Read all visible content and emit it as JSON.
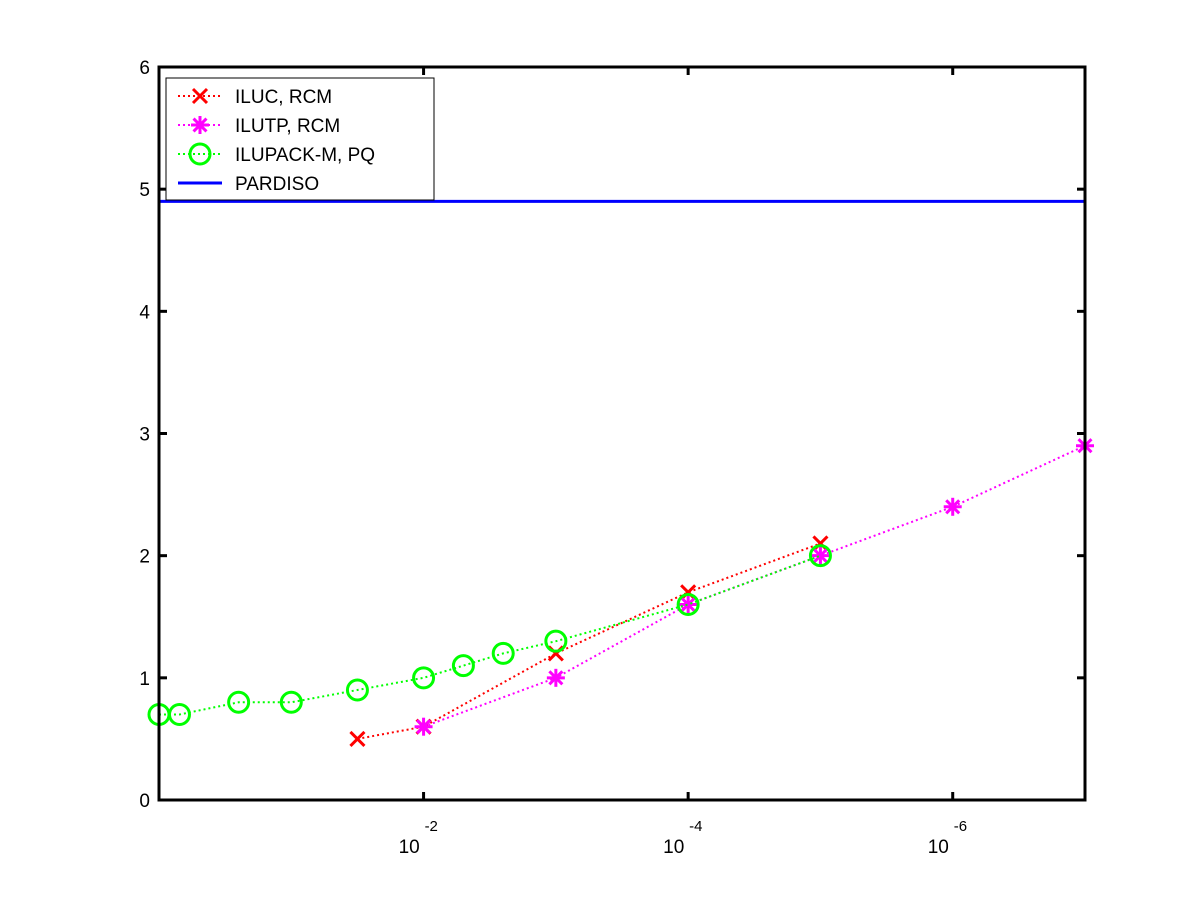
{
  "chart_data": {
    "type": "line",
    "title": "",
    "xlabel": "",
    "ylabel": "",
    "xscale": "log",
    "x_reversed": true,
    "xlim": [
      1,
      1e-07
    ],
    "ylim": [
      0,
      6
    ],
    "grid": false,
    "legend_position": "top-left",
    "yticks": [
      {
        "value": 0,
        "label": "0"
      },
      {
        "value": 1,
        "label": "1"
      },
      {
        "value": 2,
        "label": "2"
      },
      {
        "value": 3,
        "label": "3"
      },
      {
        "value": 4,
        "label": "4"
      },
      {
        "value": 5,
        "label": "5"
      },
      {
        "value": 6,
        "label": "6"
      }
    ],
    "xticks": [
      {
        "value": 0.01,
        "base": "10",
        "exponent": "-2"
      },
      {
        "value": 0.0001,
        "base": "10",
        "exponent": "-4"
      },
      {
        "value": 1e-06,
        "base": "10",
        "exponent": "-6"
      }
    ],
    "series": [
      {
        "name": "ILUC, RCM",
        "color": "#ff0000",
        "marker": "x",
        "linestyle": "dotted",
        "x": [
          0.03162,
          0.01,
          0.001,
          0.0001,
          1e-05
        ],
        "y": [
          0.5,
          0.6,
          1.2,
          1.7,
          2.1
        ]
      },
      {
        "name": "ILUTP, RCM",
        "color": "#ff00ff",
        "marker": "asterisk",
        "linestyle": "dotted",
        "x": [
          0.01,
          0.001,
          0.0001,
          1e-05,
          1e-06,
          1e-07
        ],
        "y": [
          0.6,
          1.0,
          1.6,
          2.0,
          2.4,
          2.9
        ]
      },
      {
        "name": "ILUPACK-M, PQ",
        "color": "#00ff00",
        "marker": "circle",
        "linestyle": "dotted",
        "x": [
          1.0,
          0.7,
          0.25,
          0.1,
          0.03162,
          0.01,
          0.005,
          0.0025,
          0.001,
          0.0001,
          1e-05
        ],
        "y": [
          0.7,
          0.7,
          0.8,
          0.8,
          0.9,
          1.0,
          1.1,
          1.2,
          1.3,
          1.6,
          2.0
        ]
      },
      {
        "name": "PARDISO",
        "color": "#0000ff",
        "marker": "none",
        "linestyle": "solid",
        "x": [
          1.0,
          1e-07
        ],
        "y": [
          4.9,
          4.9
        ]
      }
    ]
  }
}
